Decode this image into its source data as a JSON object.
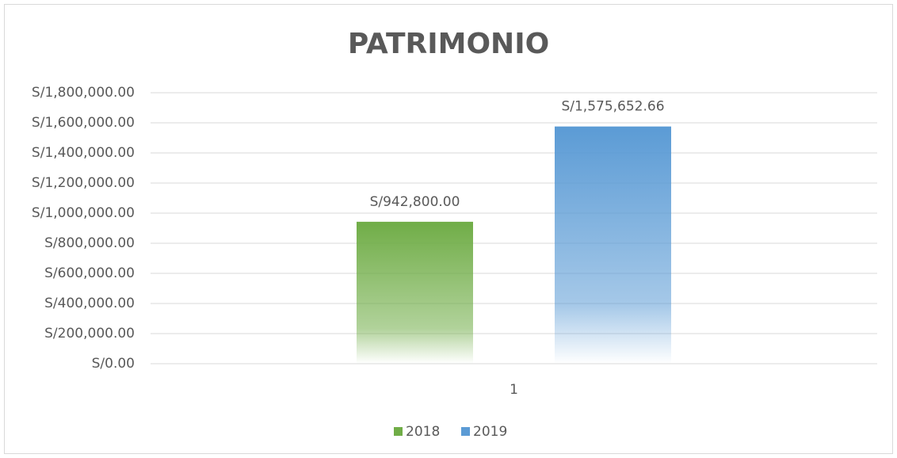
{
  "chart_data": {
    "type": "bar",
    "title": "PATRIMONIO",
    "categories": [
      "1"
    ],
    "series": [
      {
        "name": "2018",
        "color": "#70ad47",
        "values": [
          942800
        ],
        "value_labels": [
          "S/942,800.00"
        ]
      },
      {
        "name": "2019",
        "color": "#5b9bd5",
        "values": [
          1575652.66
        ],
        "value_labels": [
          "S/1,575,652.66"
        ]
      }
    ],
    "ylim": [
      0,
      1800000
    ],
    "yticks": [
      {
        "value": 0,
        "label": "S/0.00"
      },
      {
        "value": 200000,
        "label": "S/200,000.00"
      },
      {
        "value": 400000,
        "label": "S/400,000.00"
      },
      {
        "value": 600000,
        "label": "S/600,000.00"
      },
      {
        "value": 800000,
        "label": "S/800,000.00"
      },
      {
        "value": 1000000,
        "label": "S/1,000,000.00"
      },
      {
        "value": 1200000,
        "label": "S/1,200,000.00"
      },
      {
        "value": 1400000,
        "label": "S/1,400,000.00"
      },
      {
        "value": 1600000,
        "label": "S/1,600,000.00"
      },
      {
        "value": 1800000,
        "label": "S/1,800,000.00"
      }
    ],
    "grid": true,
    "legend": "bottom"
  }
}
